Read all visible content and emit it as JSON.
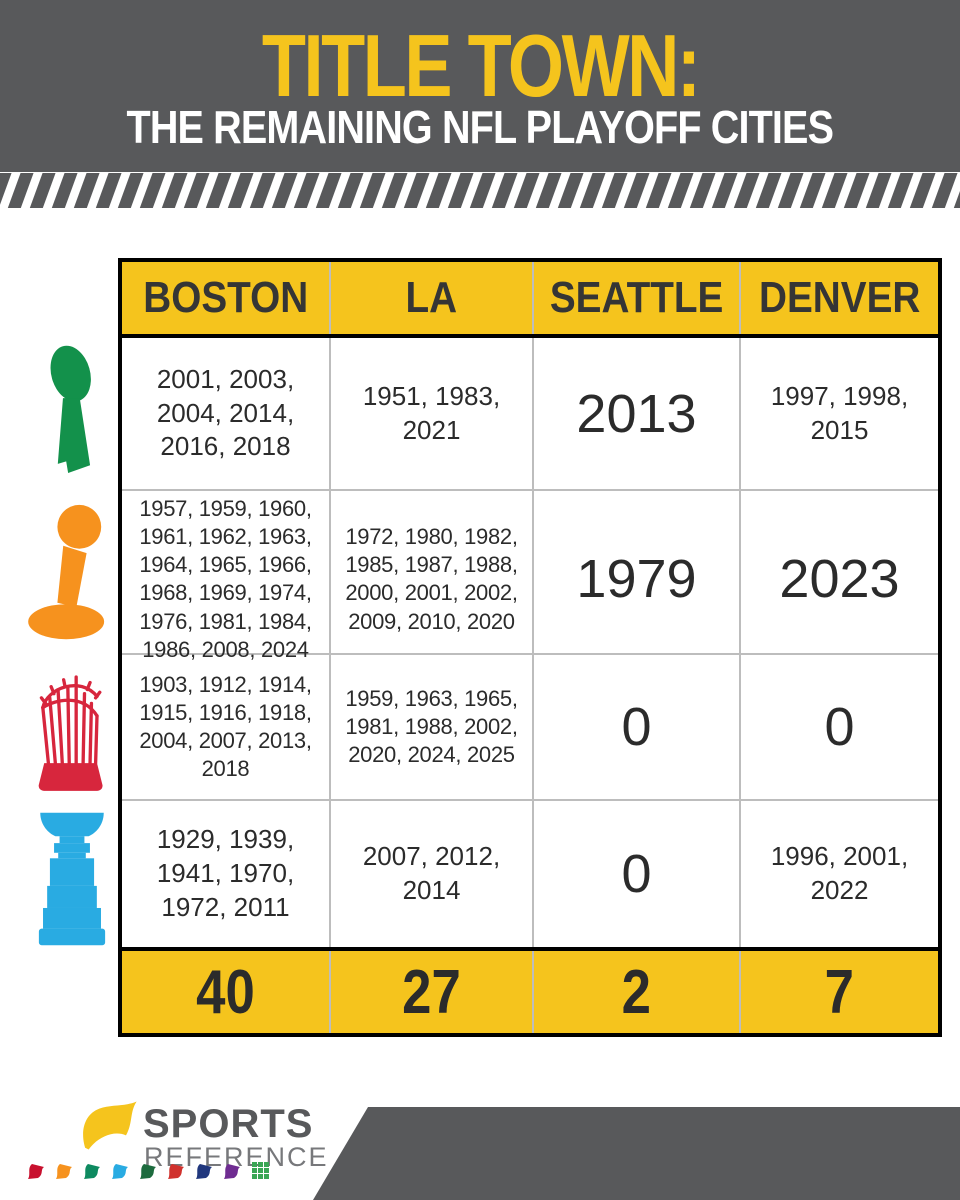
{
  "header": {
    "title": "TITLE TOWN:",
    "subtitle": "THE REMAINING NFL PLAYOFF CITIES"
  },
  "chart_data": {
    "type": "table",
    "title": "TITLE TOWN:",
    "subtitle": "THE REMAINING NFL PLAYOFF CITIES",
    "columns": [
      "BOSTON",
      "LA",
      "SEATTLE",
      "DENVER"
    ],
    "rows": [
      {
        "league": "NFL",
        "icon": "lombardi-trophy-icon",
        "color": "#13914B",
        "cells": [
          "2001, 2003, 2004, 2014, 2016, 2018",
          "1951, 1983, 2021",
          "2013",
          "1997, 1998, 2015"
        ]
      },
      {
        "league": "NBA",
        "icon": "larry-obrien-trophy-icon",
        "color": "#F6921E",
        "cells": [
          "1957, 1959, 1960, 1961, 1962, 1963, 1964, 1965, 1966, 1968, 1969, 1974, 1976, 1981, 1984, 1986, 2008, 2024",
          "1972, 1980, 1982, 1985, 1987, 1988, 2000, 2001, 2002, 2009, 2010, 2020",
          "1979",
          "2023"
        ]
      },
      {
        "league": "MLB",
        "icon": "world-series-trophy-icon",
        "color": "#D7263D",
        "cells": [
          "1903, 1912, 1914, 1915, 1916, 1918, 2004, 2007, 2013, 2018",
          "1959, 1963, 1965, 1981, 1988, 2002, 2020, 2024, 2025",
          "0",
          "0"
        ]
      },
      {
        "league": "NHL",
        "icon": "stanley-cup-icon",
        "color": "#29ABE2",
        "cells": [
          "1929, 1939, 1941, 1970, 1972, 2011",
          "2007, 2012, 2014",
          "0",
          "1996, 2001, 2022"
        ]
      }
    ],
    "totals": [
      "40",
      "27",
      "2",
      "7"
    ],
    "legend_position": "left-icons",
    "grid": true
  },
  "colors": {
    "header_gray": "#58595B",
    "accent_yellow": "#F5C41D",
    "text_dark": "#2B2B2B",
    "grid_line": "#BDBDBD"
  },
  "footer": {
    "brand_top": "SPORTS",
    "brand_bottom": "REFERENCE",
    "flag_icon": "sports-reference-flag-icon",
    "site_logos": [
      {
        "name": "reference-site-flag-1",
        "color": "#C8102E"
      },
      {
        "name": "reference-site-flag-2",
        "color": "#F6921E"
      },
      {
        "name": "reference-site-flag-3",
        "color": "#0E8A60"
      },
      {
        "name": "reference-site-flag-4",
        "color": "#29ABE2"
      },
      {
        "name": "reference-site-flag-5",
        "color": "#1D6B3E"
      },
      {
        "name": "reference-site-flag-6",
        "color": "#D0312D"
      },
      {
        "name": "reference-site-flag-7",
        "color": "#20377D"
      },
      {
        "name": "reference-site-flag-8",
        "color": "#6F2C91"
      },
      {
        "name": "reference-site-grid-9",
        "color": "#3AA655"
      }
    ]
  }
}
